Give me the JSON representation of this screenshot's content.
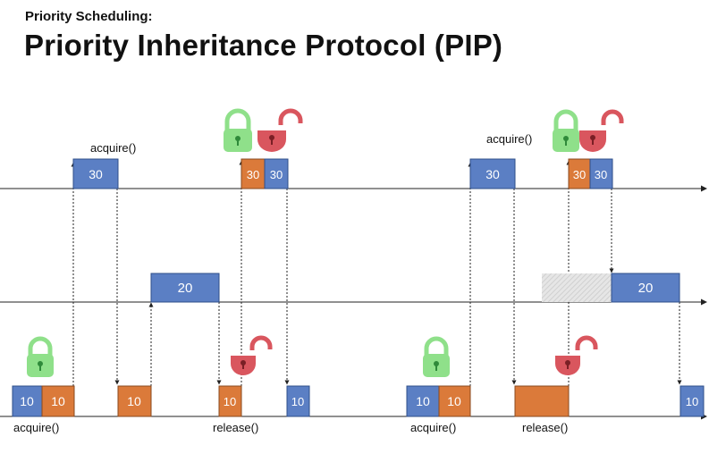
{
  "header": {
    "subtitle": "Priority Scheduling:",
    "title": "Priority Inheritance Protocol (PIP)"
  },
  "colors": {
    "blue": "#5b7fc4",
    "orange": "#db7a3a",
    "green": "#8fe08a",
    "red": "#d9565e",
    "axis": "#222222"
  },
  "left": {
    "high_priority": "30",
    "mid_priority": "20",
    "low_priority": "10",
    "high_inherited": "30",
    "low_running": "10",
    "low_release": "10",
    "acquire_top": "acquire()",
    "acquire_bottom": "acquire()",
    "release_bottom": "release()"
  },
  "right": {
    "high_priority": "30",
    "mid_priority": "20",
    "low_priority": "10",
    "high_inherited": "30",
    "low_running": "10",
    "acquire_top": "acquire()",
    "acquire_bottom": "acquire()",
    "release_bottom": "release()"
  }
}
